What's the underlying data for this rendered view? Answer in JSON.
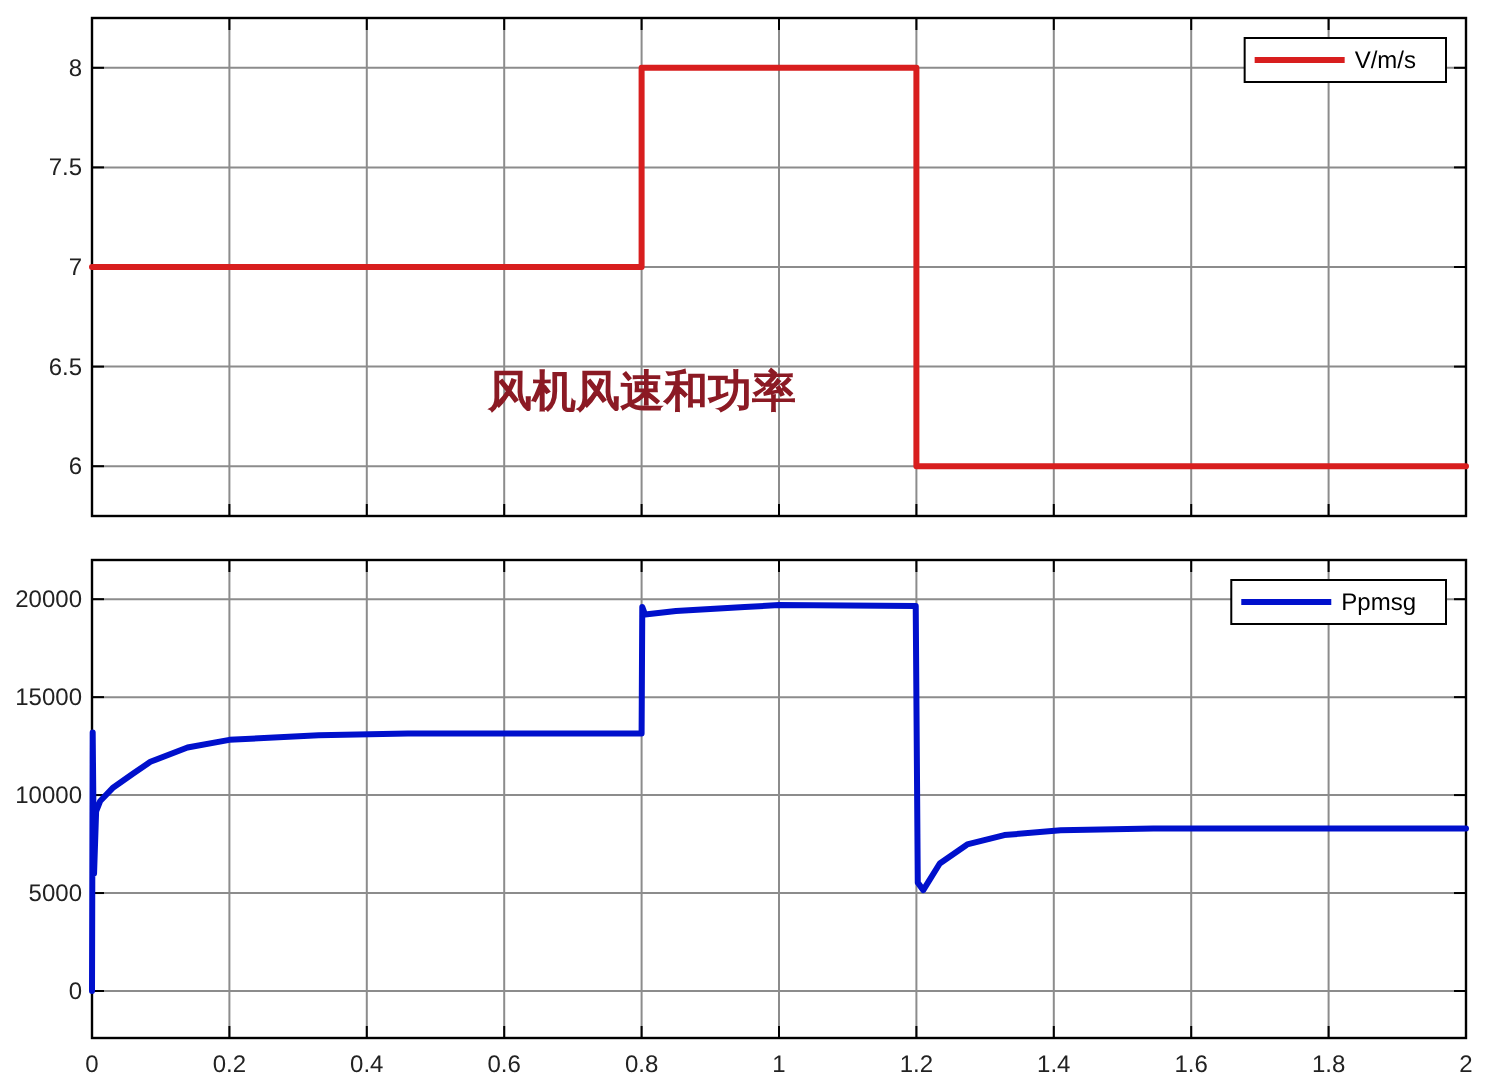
{
  "chart_data": [
    {
      "type": "line",
      "title": "风机风速和功率",
      "xlim": [
        0,
        2
      ],
      "xticks": [
        0,
        0.2,
        0.4,
        0.6,
        0.8,
        1,
        1.2,
        1.4,
        1.6,
        1.8,
        2
      ],
      "ylim": [
        5.75,
        8.25
      ],
      "yticks": [
        6,
        6.5,
        7,
        7.5,
        8
      ],
      "grid": true,
      "legend": "top right",
      "tick_labels": "y",
      "series": [
        {
          "name": "V/m/s",
          "color": "#d81e1e",
          "x": [
            0,
            0.8,
            0.8,
            1.2,
            1.2,
            2
          ],
          "values": [
            7,
            7,
            8,
            8,
            6,
            6
          ]
        }
      ]
    },
    {
      "type": "line",
      "xlim": [
        0,
        2
      ],
      "xticks": [
        0,
        0.2,
        0.4,
        0.6,
        0.8,
        1,
        1.2,
        1.4,
        1.6,
        1.8,
        2
      ],
      "ylim": [
        -2400,
        22000
      ],
      "yticks": [
        0,
        5000,
        10000,
        15000,
        20000
      ],
      "grid": true,
      "legend": "top right",
      "series": [
        {
          "name": "Ppmsg",
          "color": "#0010cc",
          "x": [
            0,
            0.001,
            0.003,
            0.006,
            0.012,
            0.031,
            0.06,
            0.085,
            0.139,
            0.2,
            0.33,
            0.46,
            0.8,
            0.801,
            0.805,
            0.85,
            0.95,
            1.0,
            1.199,
            1.202,
            1.21,
            1.234,
            1.274,
            1.328,
            1.41,
            1.545,
            2
          ],
          "values": [
            0,
            13200,
            6000,
            9170,
            9700,
            10390,
            11100,
            11700,
            12430,
            12820,
            13060,
            13150,
            13150,
            19600,
            19220,
            19400,
            19600,
            19700,
            19650,
            5530,
            5150,
            6510,
            7480,
            7960,
            8200,
            8300,
            8300
          ]
        }
      ]
    }
  ]
}
